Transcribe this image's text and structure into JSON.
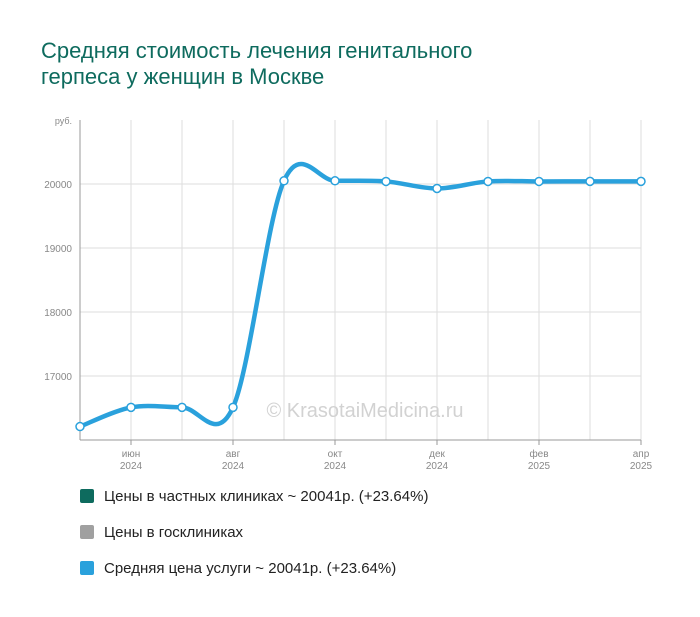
{
  "title_lines": [
    "Средняя стоимость лечения генитального",
    "герпеса у женщин в Москве"
  ],
  "watermark": "© KrasotaiMedicina.ru",
  "legend": [
    {
      "label": "Цены в частных клиниках ~ 20041р. (+23.64%)",
      "color": "#0e6b5e"
    },
    {
      "label": "Цены в госклиниках",
      "color": "#a0a0a0"
    },
    {
      "label": "Средняя цена услуги ~ 20041р. (+23.64%)",
      "color": "#2aa1dc"
    }
  ],
  "chart_data": {
    "type": "line",
    "title": "Средняя стоимость лечения генитального герпеса у женщин в Москве",
    "ylabel": "руб.",
    "ylim": [
      16000,
      21000
    ],
    "y_ticks": [
      17000,
      18000,
      19000,
      20000
    ],
    "x_ticks": [
      {
        "month": "июн",
        "year": "2024",
        "index": 1
      },
      {
        "month": "авг",
        "year": "2024",
        "index": 3
      },
      {
        "month": "окт",
        "year": "2024",
        "index": 5
      },
      {
        "month": "дек",
        "year": "2024",
        "index": 7
      },
      {
        "month": "фев",
        "year": "2025",
        "index": 9
      },
      {
        "month": "апр",
        "year": "2025",
        "index": 11
      }
    ],
    "x": [
      "май 2024",
      "июн 2024",
      "июл 2024",
      "авг 2024",
      "сен 2024",
      "окт 2024",
      "ноя 2024",
      "дек 2024",
      "янв 2025",
      "фев 2025",
      "мар 2025",
      "апр 2025"
    ],
    "series": [
      {
        "name": "Средняя цена услуги",
        "color": "#2aa1dc",
        "values": [
          16210,
          16510,
          16510,
          16510,
          20050,
          20050,
          20040,
          19930,
          20040,
          20040,
          20041,
          20041
        ]
      }
    ],
    "grid": true
  }
}
